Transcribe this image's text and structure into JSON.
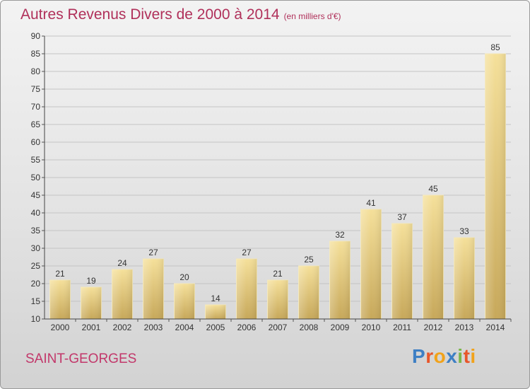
{
  "title": "Autres Revenus Divers de 2000 à 2014",
  "subtitle": "(en milliers d'€)",
  "commune": "SAINT-GEORGES",
  "logo": {
    "text": "Proxiti",
    "colors": [
      "#3d7fc4",
      "#e8562a",
      "#f1a21a",
      "#3d7fc4",
      "#7ab648",
      "#e8562a",
      "#f1a21a"
    ]
  },
  "colors": {
    "bar_top": "#f5e09a",
    "bar_bottom": "#c7a85a",
    "title": "#b0305a"
  },
  "chart_data": {
    "type": "bar",
    "categories": [
      "2000",
      "2001",
      "2002",
      "2003",
      "2004",
      "2005",
      "2006",
      "2007",
      "2008",
      "2009",
      "2010",
      "2011",
      "2012",
      "2013",
      "2014"
    ],
    "values": [
      21,
      19,
      24,
      27,
      20,
      14,
      27,
      21,
      25,
      32,
      41,
      37,
      45,
      33,
      85
    ],
    "title": "Autres Revenus Divers de 2000 à 2014",
    "xlabel": "",
    "ylabel": "",
    "ylim": [
      10,
      90
    ],
    "yticks": [
      10,
      15,
      20,
      25,
      30,
      35,
      40,
      45,
      50,
      55,
      60,
      65,
      70,
      75,
      80,
      85,
      90
    ],
    "grid": true
  }
}
